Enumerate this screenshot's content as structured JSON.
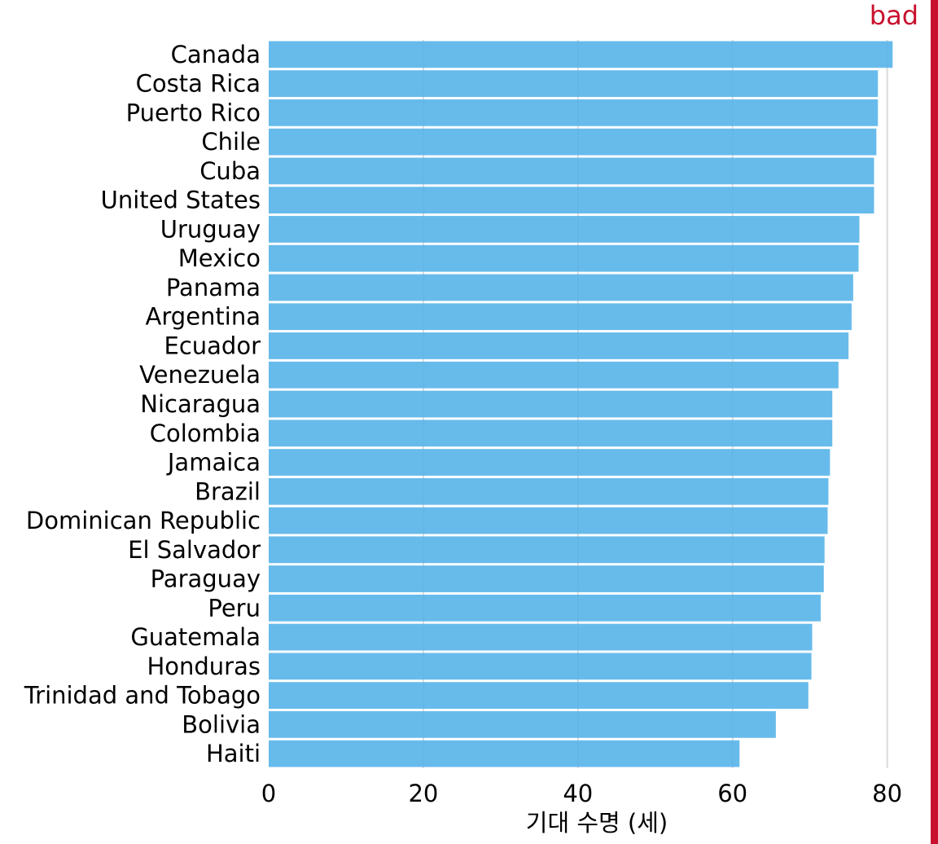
{
  "badge": {
    "text": "bad",
    "color": "#C8102E"
  },
  "colors": {
    "bar": "#56B4E9",
    "grid": "#dcdcdc",
    "text": "#000000"
  },
  "chart_data": {
    "type": "bar",
    "orientation": "horizontal",
    "xlabel": "기대 수명 (세)",
    "ylabel": "",
    "xlim": [
      0,
      82
    ],
    "xticks": [
      0,
      20,
      40,
      60,
      80
    ],
    "grid": "vertical",
    "categories": [
      "Canada",
      "Costa Rica",
      "Puerto Rico",
      "Chile",
      "Cuba",
      "United States",
      "Uruguay",
      "Mexico",
      "Panama",
      "Argentina",
      "Ecuador",
      "Venezuela",
      "Nicaragua",
      "Colombia",
      "Jamaica",
      "Brazil",
      "Dominican Republic",
      "El Salvador",
      "Paraguay",
      "Peru",
      "Guatemala",
      "Honduras",
      "Trinidad and Tobago",
      "Bolivia",
      "Haiti"
    ],
    "values": [
      80.7,
      78.8,
      78.8,
      78.6,
      78.3,
      78.3,
      76.4,
      76.3,
      75.6,
      75.4,
      75.0,
      73.7,
      72.9,
      72.9,
      72.6,
      72.4,
      72.3,
      71.9,
      71.8,
      71.4,
      70.3,
      70.2,
      69.8,
      65.6,
      60.9
    ]
  }
}
